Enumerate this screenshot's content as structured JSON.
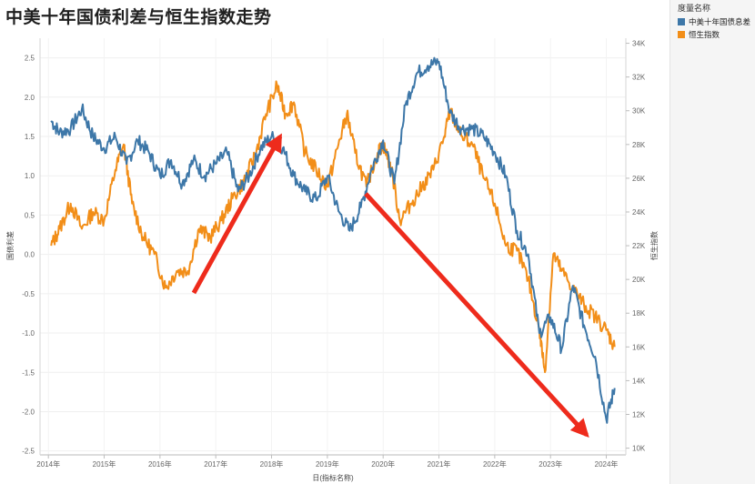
{
  "title": "中美十年国债利差与恒生指数走势",
  "legend": {
    "title": "度量名称",
    "items": [
      {
        "label": "中美十年国债息差",
        "color": "#3d77a8"
      },
      {
        "label": "恒生指数",
        "color": "#f28e18"
      }
    ]
  },
  "chart_data": {
    "type": "line",
    "title": "中美十年国债利差与恒生指数走势",
    "xlabel": "日(指标名称)",
    "ylabel_left": "国债利差",
    "ylabel_right": "恒生指数",
    "x_tick_labels": [
      "2014年",
      "2015年",
      "2016年",
      "2017年",
      "2018年",
      "2019年",
      "2020年",
      "2021年",
      "2022年",
      "2023年",
      "2024年"
    ],
    "x_tick_values": [
      2014,
      2015,
      2016,
      2017,
      2018,
      2019,
      2020,
      2021,
      2022,
      2023,
      2024
    ],
    "xlim": [
      2013.85,
      2024.35
    ],
    "y_left_ticks": [
      "2.5",
      "2.0",
      "1.5",
      "1.0",
      "0.5",
      "0.0",
      "-0.5",
      "-1.0",
      "-1.5",
      "-2.0",
      "-2.5"
    ],
    "y_left_tick_values": [
      2.5,
      2.0,
      1.5,
      1.0,
      0.5,
      0.0,
      -0.5,
      -1.0,
      -1.5,
      -2.0,
      -2.5
    ],
    "y_left_lim": [
      -2.55,
      2.75
    ],
    "y_right_ticks": [
      "34K",
      "32K",
      "30K",
      "28K",
      "26K",
      "24K",
      "22K",
      "20K",
      "18K",
      "16K",
      "14K",
      "12K",
      "10K"
    ],
    "y_right_tick_values": [
      34000,
      32000,
      30000,
      28000,
      26000,
      24000,
      22000,
      20000,
      18000,
      16000,
      14000,
      12000,
      10000
    ],
    "y_right_lim": [
      9600,
      34300
    ],
    "grid": true,
    "series": [
      {
        "name": "中美十年国债息差",
        "axis": "left",
        "color": "#3d77a8",
        "x": [
          2014.05,
          2014.2,
          2014.4,
          2014.6,
          2014.8,
          2015.0,
          2015.2,
          2015.4,
          2015.6,
          2015.8,
          2016.0,
          2016.2,
          2016.4,
          2016.6,
          2016.8,
          2017.0,
          2017.2,
          2017.4,
          2017.6,
          2017.8,
          2018.0,
          2018.2,
          2018.4,
          2018.6,
          2018.8,
          2019.0,
          2019.2,
          2019.4,
          2019.6,
          2019.8,
          2020.0,
          2020.2,
          2020.4,
          2020.6,
          2020.8,
          2021.0,
          2021.2,
          2021.4,
          2021.6,
          2021.8,
          2022.0,
          2022.2,
          2022.4,
          2022.6,
          2022.8,
          2023.0,
          2023.2,
          2023.4,
          2023.6,
          2023.8,
          2024.0,
          2024.15
        ],
        "values": [
          1.7,
          1.55,
          1.6,
          1.85,
          1.5,
          1.35,
          1.5,
          1.15,
          1.45,
          1.3,
          1.0,
          1.2,
          0.9,
          1.2,
          1.0,
          1.15,
          1.3,
          0.8,
          1.0,
          1.35,
          1.5,
          1.35,
          1.0,
          0.8,
          0.7,
          1.0,
          0.55,
          0.3,
          0.6,
          1.1,
          1.45,
          0.9,
          1.9,
          2.3,
          2.4,
          2.45,
          1.8,
          1.6,
          1.6,
          1.5,
          1.3,
          1.0,
          0.3,
          0.0,
          -1.0,
          -0.8,
          -1.2,
          -0.4,
          -0.9,
          -1.3,
          -2.1,
          -1.7
        ]
      },
      {
        "name": "恒生指数",
        "axis": "right",
        "color": "#f28e18",
        "x": [
          2014.05,
          2014.2,
          2014.4,
          2014.6,
          2014.8,
          2015.0,
          2015.2,
          2015.35,
          2015.5,
          2015.7,
          2015.9,
          2016.1,
          2016.3,
          2016.5,
          2016.7,
          2016.9,
          2017.1,
          2017.3,
          2017.5,
          2017.7,
          2017.9,
          2018.1,
          2018.25,
          2018.4,
          2018.6,
          2018.8,
          2019.0,
          2019.2,
          2019.35,
          2019.5,
          2019.7,
          2019.9,
          2020.0,
          2020.15,
          2020.3,
          2020.5,
          2020.7,
          2020.9,
          2021.1,
          2021.2,
          2021.4,
          2021.6,
          2021.8,
          2022.0,
          2022.2,
          2022.4,
          2022.6,
          2022.8,
          2022.9,
          2023.05,
          2023.2,
          2023.4,
          2023.6,
          2023.8,
          2024.0,
          2024.15
        ],
        "values": [
          22000,
          23000,
          24500,
          23000,
          24000,
          23500,
          26500,
          28000,
          24500,
          22500,
          21500,
          19500,
          20500,
          20500,
          23000,
          22500,
          23500,
          24800,
          25800,
          27300,
          29800,
          31500,
          29800,
          30500,
          27500,
          26500,
          25500,
          28000,
          29800,
          27500,
          25500,
          27500,
          28000,
          26500,
          23500,
          24500,
          25500,
          26500,
          28500,
          30000,
          28500,
          28000,
          26000,
          24500,
          22000,
          21700,
          20000,
          17000,
          14500,
          21500,
          20500,
          19500,
          18500,
          17800,
          17000,
          16000
        ]
      }
    ]
  },
  "annotations": [
    {
      "name": "up-arrow"
    },
    {
      "name": "down-arrow"
    }
  ]
}
